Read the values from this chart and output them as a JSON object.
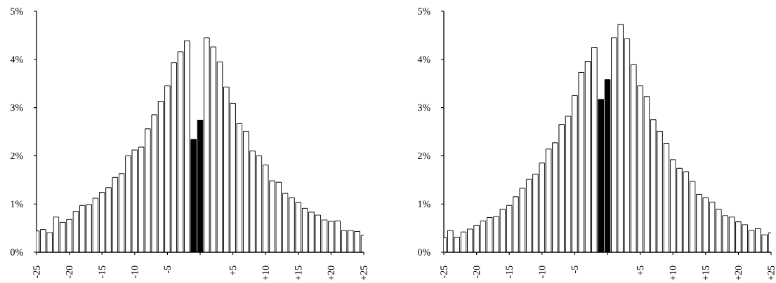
{
  "chart_data": [
    {
      "type": "bar",
      "x": [
        -25,
        -24,
        -23,
        -22,
        -21,
        -20,
        -19,
        -18,
        -17,
        -16,
        -15,
        -14,
        -13,
        -12,
        -11,
        -10,
        -9,
        -8,
        -7,
        -6,
        -5,
        -4,
        -3,
        -2,
        -1,
        0,
        1,
        2,
        3,
        4,
        5,
        6,
        7,
        8,
        9,
        10,
        11,
        12,
        13,
        14,
        15,
        16,
        17,
        18,
        19,
        20,
        21,
        22,
        23,
        24,
        25
      ],
      "values": [
        0.44,
        0.47,
        0.41,
        0.73,
        0.62,
        0.68,
        0.85,
        0.97,
        0.99,
        1.12,
        1.24,
        1.34,
        1.55,
        1.63,
        2.0,
        2.12,
        2.18,
        2.56,
        2.85,
        3.13,
        3.45,
        3.93,
        4.16,
        4.39,
        2.34,
        2.74,
        4.45,
        4.26,
        3.95,
        3.43,
        3.09,
        2.67,
        2.51,
        2.1,
        2.0,
        1.81,
        1.48,
        1.45,
        1.22,
        1.13,
        1.03,
        0.91,
        0.83,
        0.77,
        0.67,
        0.64,
        0.65,
        0.45,
        0.45,
        0.43,
        0.35
      ],
      "colors": [
        "#ffffff",
        "#ffffff",
        "#ffffff",
        "#ffffff",
        "#ffffff",
        "#ffffff",
        "#ffffff",
        "#ffffff",
        "#ffffff",
        "#ffffff",
        "#ffffff",
        "#ffffff",
        "#ffffff",
        "#ffffff",
        "#ffffff",
        "#ffffff",
        "#ffffff",
        "#ffffff",
        "#ffffff",
        "#ffffff",
        "#ffffff",
        "#ffffff",
        "#ffffff",
        "#ffffff",
        "#000000",
        "#000000",
        "#ffffff",
        "#ffffff",
        "#ffffff",
        "#ffffff",
        "#ffffff",
        "#ffffff",
        "#ffffff",
        "#ffffff",
        "#ffffff",
        "#ffffff",
        "#ffffff",
        "#ffffff",
        "#ffffff",
        "#ffffff",
        "#ffffff",
        "#ffffff",
        "#ffffff",
        "#ffffff",
        "#ffffff",
        "#ffffff",
        "#ffffff",
        "#ffffff",
        "#ffffff",
        "#ffffff",
        "#ffffff"
      ],
      "xlim": [
        -25,
        25
      ],
      "xticks": [
        -25,
        -20,
        -15,
        -10,
        -5,
        {
          "value": 0,
          "label": null
        },
        {
          "value": 5,
          "label": "+5"
        },
        {
          "value": 10,
          "label": "+10"
        },
        {
          "value": 15,
          "label": "+15"
        },
        {
          "value": 20,
          "label": "+20"
        },
        {
          "value": 25,
          "label": "+25"
        }
      ],
      "ylim": [
        0,
        5
      ],
      "yticks": [
        {
          "value": 0,
          "label": "0%"
        },
        {
          "value": 1,
          "label": "1%"
        },
        {
          "value": 2,
          "label": "2%"
        },
        {
          "value": 3,
          "label": "3%"
        },
        {
          "value": 4,
          "label": "4%"
        },
        {
          "value": 5,
          "label": "5%"
        }
      ]
    },
    {
      "type": "bar",
      "x": [
        -25,
        -24,
        -23,
        -22,
        -21,
        -20,
        -19,
        -18,
        -17,
        -16,
        -15,
        -14,
        -13,
        -12,
        -11,
        -10,
        -9,
        -8,
        -7,
        -6,
        -5,
        -4,
        -3,
        -2,
        -1,
        0,
        1,
        2,
        3,
        4,
        5,
        6,
        7,
        8,
        9,
        10,
        11,
        12,
        13,
        14,
        15,
        16,
        17,
        18,
        19,
        20,
        21,
        22,
        23,
        24,
        25
      ],
      "values": [
        0.3,
        0.45,
        0.31,
        0.42,
        0.48,
        0.56,
        0.65,
        0.72,
        0.74,
        0.89,
        0.97,
        1.15,
        1.33,
        1.51,
        1.62,
        1.85,
        2.14,
        2.27,
        2.65,
        2.82,
        3.25,
        3.73,
        3.96,
        4.25,
        3.17,
        3.58,
        4.45,
        4.73,
        4.43,
        3.89,
        3.45,
        3.23,
        2.75,
        2.51,
        2.26,
        1.92,
        1.74,
        1.67,
        1.47,
        1.2,
        1.13,
        1.04,
        0.89,
        0.76,
        0.73,
        0.63,
        0.57,
        0.45,
        0.49,
        0.36,
        0.4
      ],
      "colors": [
        "#ffffff",
        "#ffffff",
        "#ffffff",
        "#ffffff",
        "#ffffff",
        "#ffffff",
        "#ffffff",
        "#ffffff",
        "#ffffff",
        "#ffffff",
        "#ffffff",
        "#ffffff",
        "#ffffff",
        "#ffffff",
        "#ffffff",
        "#ffffff",
        "#ffffff",
        "#ffffff",
        "#ffffff",
        "#ffffff",
        "#ffffff",
        "#ffffff",
        "#ffffff",
        "#ffffff",
        "#000000",
        "#000000",
        "#ffffff",
        "#ffffff",
        "#ffffff",
        "#ffffff",
        "#ffffff",
        "#ffffff",
        "#ffffff",
        "#ffffff",
        "#ffffff",
        "#ffffff",
        "#ffffff",
        "#ffffff",
        "#ffffff",
        "#ffffff",
        "#ffffff",
        "#ffffff",
        "#ffffff",
        "#ffffff",
        "#ffffff",
        "#ffffff",
        "#ffffff",
        "#ffffff",
        "#ffffff",
        "#ffffff",
        "#ffffff"
      ],
      "xlim": [
        -25,
        25
      ],
      "xticks": [
        -25,
        -20,
        -15,
        -10,
        -5,
        {
          "value": 0,
          "label": null
        },
        {
          "value": 5,
          "label": "+5"
        },
        {
          "value": 10,
          "label": "+10"
        },
        {
          "value": 15,
          "label": "+15"
        },
        {
          "value": 20,
          "label": "+20"
        },
        {
          "value": 25,
          "label": "+25"
        }
      ],
      "ylim": [
        0,
        5
      ],
      "yticks": [
        {
          "value": 0,
          "label": "0%"
        },
        {
          "value": 1,
          "label": "1%"
        },
        {
          "value": 2,
          "label": "2%"
        },
        {
          "value": 3,
          "label": "3%"
        },
        {
          "value": 4,
          "label": "4%"
        },
        {
          "value": 5,
          "label": "5%"
        }
      ]
    }
  ]
}
